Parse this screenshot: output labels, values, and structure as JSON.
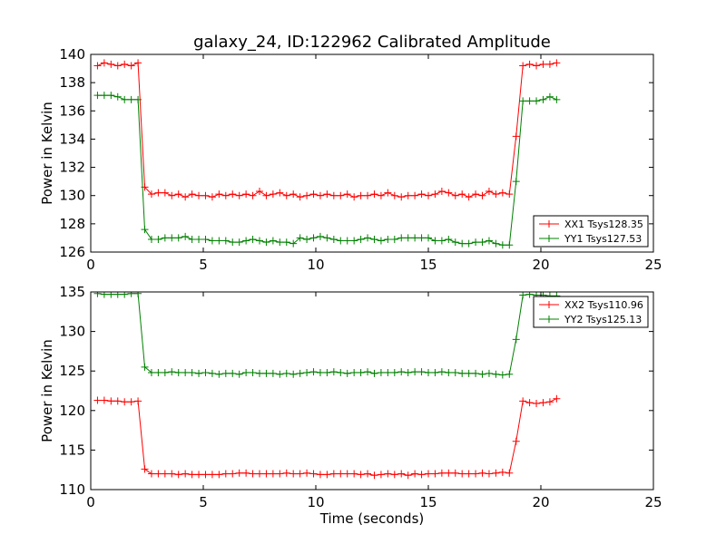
{
  "chart_data": [
    {
      "type": "line",
      "title": "galaxy_24, ID:122962 Calibrated Amplitude",
      "xlabel": "",
      "ylabel": "Power in Kelvin",
      "xlim": [
        0,
        25
      ],
      "ylim": [
        126,
        140
      ],
      "xticks": [
        "0",
        "5",
        "10",
        "15",
        "20",
        "25"
      ],
      "yticks": [
        "126",
        "128",
        "130",
        "132",
        "134",
        "136",
        "138",
        "140"
      ],
      "grid": false,
      "legend": "lower-right",
      "series": [
        {
          "name": "XX1 Tsys128.35",
          "color": "#ff0000",
          "x": [
            0.3,
            0.6,
            0.9,
            1.2,
            1.5,
            1.8,
            2.1,
            2.4,
            2.7,
            3.0,
            3.3,
            3.6,
            3.9,
            4.2,
            4.5,
            4.8,
            5.1,
            5.4,
            5.7,
            6.0,
            6.3,
            6.6,
            6.9,
            7.2,
            7.5,
            7.8,
            8.1,
            8.4,
            8.7,
            9.0,
            9.3,
            9.6,
            9.9,
            10.2,
            10.5,
            10.8,
            11.1,
            11.4,
            11.7,
            12.0,
            12.3,
            12.6,
            12.9,
            13.2,
            13.5,
            13.8,
            14.1,
            14.4,
            14.7,
            15.0,
            15.3,
            15.6,
            15.9,
            16.2,
            16.5,
            16.8,
            17.1,
            17.4,
            17.7,
            18.0,
            18.3,
            18.6,
            18.9,
            19.2,
            19.5,
            19.8,
            20.1,
            20.4,
            20.7
          ],
          "y": [
            139.2,
            139.4,
            139.3,
            139.2,
            139.3,
            139.2,
            139.4,
            130.6,
            130.1,
            130.2,
            130.2,
            130.0,
            130.1,
            129.9,
            130.1,
            130.0,
            130.0,
            129.9,
            130.1,
            130.0,
            130.1,
            130.0,
            130.1,
            130.0,
            130.3,
            130.0,
            130.1,
            130.2,
            130.0,
            130.1,
            129.9,
            130.0,
            130.1,
            130.0,
            130.1,
            130.0,
            130.0,
            130.1,
            129.9,
            130.0,
            130.0,
            130.1,
            130.0,
            130.2,
            130.0,
            129.9,
            130.0,
            130.0,
            130.1,
            130.0,
            130.1,
            130.3,
            130.2,
            130.0,
            130.1,
            129.9,
            130.1,
            130.0,
            130.3,
            130.1,
            130.2,
            130.1,
            134.2,
            139.2,
            139.3,
            139.2,
            139.3,
            139.3,
            139.4
          ]
        },
        {
          "name": "YY1 Tsys127.53",
          "color": "#008000",
          "x": [
            0.3,
            0.6,
            0.9,
            1.2,
            1.5,
            1.8,
            2.1,
            2.4,
            2.7,
            3.0,
            3.3,
            3.6,
            3.9,
            4.2,
            4.5,
            4.8,
            5.1,
            5.4,
            5.7,
            6.0,
            6.3,
            6.6,
            6.9,
            7.2,
            7.5,
            7.8,
            8.1,
            8.4,
            8.7,
            9.0,
            9.3,
            9.6,
            9.9,
            10.2,
            10.5,
            10.8,
            11.1,
            11.4,
            11.7,
            12.0,
            12.3,
            12.6,
            12.9,
            13.2,
            13.5,
            13.8,
            14.1,
            14.4,
            14.7,
            15.0,
            15.3,
            15.6,
            15.9,
            16.2,
            16.5,
            16.8,
            17.1,
            17.4,
            17.7,
            18.0,
            18.3,
            18.6,
            18.9,
            19.2,
            19.5,
            19.8,
            20.1,
            20.4,
            20.7
          ],
          "y": [
            137.1,
            137.1,
            137.1,
            137.0,
            136.8,
            136.8,
            136.8,
            127.6,
            126.9,
            126.9,
            127.0,
            127.0,
            127.0,
            127.1,
            126.9,
            126.9,
            126.9,
            126.8,
            126.8,
            126.8,
            126.7,
            126.7,
            126.8,
            126.9,
            126.8,
            126.7,
            126.8,
            126.7,
            126.7,
            126.6,
            127.0,
            126.9,
            127.0,
            127.1,
            127.0,
            126.9,
            126.8,
            126.8,
            126.8,
            126.9,
            127.0,
            126.9,
            126.8,
            126.9,
            126.9,
            127.0,
            127.0,
            127.0,
            127.0,
            127.0,
            126.8,
            126.8,
            126.9,
            126.7,
            126.6,
            126.6,
            126.7,
            126.7,
            126.8,
            126.6,
            126.5,
            126.5,
            131.0,
            136.7,
            136.7,
            136.7,
            136.8,
            137.0,
            136.8
          ]
        }
      ]
    },
    {
      "type": "line",
      "title": "",
      "xlabel": "Time (seconds)",
      "ylabel": "Power in Kelvin",
      "xlim": [
        0,
        25
      ],
      "ylim": [
        110,
        135
      ],
      "xticks": [
        "0",
        "5",
        "10",
        "15",
        "20",
        "25"
      ],
      "yticks": [
        "110",
        "115",
        "120",
        "125",
        "130",
        "135"
      ],
      "grid": false,
      "legend": "top-right",
      "series": [
        {
          "name": "XX2 Tsys110.96",
          "color": "#ff0000",
          "x": [
            0.3,
            0.6,
            0.9,
            1.2,
            1.5,
            1.8,
            2.1,
            2.4,
            2.7,
            3.0,
            3.3,
            3.6,
            3.9,
            4.2,
            4.5,
            4.8,
            5.1,
            5.4,
            5.7,
            6.0,
            6.3,
            6.6,
            6.9,
            7.2,
            7.5,
            7.8,
            8.1,
            8.4,
            8.7,
            9.0,
            9.3,
            9.6,
            9.9,
            10.2,
            10.5,
            10.8,
            11.1,
            11.4,
            11.7,
            12.0,
            12.3,
            12.6,
            12.9,
            13.2,
            13.5,
            13.8,
            14.1,
            14.4,
            14.7,
            15.0,
            15.3,
            15.6,
            15.9,
            16.2,
            16.5,
            16.8,
            17.1,
            17.4,
            17.7,
            18.0,
            18.3,
            18.6,
            18.9,
            19.2,
            19.5,
            19.8,
            20.1,
            20.4,
            20.7
          ],
          "y": [
            121.3,
            121.3,
            121.2,
            121.2,
            121.1,
            121.1,
            121.2,
            112.6,
            112.0,
            112.0,
            112.0,
            112.0,
            111.9,
            112.0,
            111.9,
            111.9,
            111.9,
            111.9,
            111.9,
            112.0,
            112.0,
            112.1,
            112.1,
            112.0,
            112.0,
            112.0,
            112.0,
            112.0,
            112.1,
            112.0,
            112.0,
            112.1,
            112.0,
            111.9,
            111.9,
            112.0,
            112.0,
            112.0,
            112.0,
            111.9,
            112.0,
            111.8,
            111.9,
            112.0,
            111.9,
            112.0,
            111.8,
            112.0,
            111.9,
            112.0,
            112.0,
            112.1,
            112.1,
            112.1,
            112.0,
            112.0,
            112.0,
            112.1,
            112.0,
            112.1,
            112.2,
            112.1,
            116.1,
            121.2,
            121.0,
            120.9,
            121.0,
            121.1,
            121.5
          ]
        },
        {
          "name": "YY2 Tsys125.13",
          "color": "#008000",
          "x": [
            0.3,
            0.6,
            0.9,
            1.2,
            1.5,
            1.8,
            2.1,
            2.4,
            2.7,
            3.0,
            3.3,
            3.6,
            3.9,
            4.2,
            4.5,
            4.8,
            5.1,
            5.4,
            5.7,
            6.0,
            6.3,
            6.6,
            6.9,
            7.2,
            7.5,
            7.8,
            8.1,
            8.4,
            8.7,
            9.0,
            9.3,
            9.6,
            9.9,
            10.2,
            10.5,
            10.8,
            11.1,
            11.4,
            11.7,
            12.0,
            12.3,
            12.6,
            12.9,
            13.2,
            13.5,
            13.8,
            14.1,
            14.4,
            14.7,
            15.0,
            15.3,
            15.6,
            15.9,
            16.2,
            16.5,
            16.8,
            17.1,
            17.4,
            17.7,
            18.0,
            18.3,
            18.6,
            18.9,
            19.2,
            19.5,
            19.8,
            20.1,
            20.4,
            20.7
          ],
          "y": [
            134.8,
            134.7,
            134.7,
            134.7,
            134.7,
            134.8,
            134.8,
            125.5,
            124.8,
            124.8,
            124.8,
            124.9,
            124.8,
            124.8,
            124.8,
            124.7,
            124.8,
            124.7,
            124.6,
            124.7,
            124.7,
            124.6,
            124.8,
            124.8,
            124.7,
            124.7,
            124.7,
            124.6,
            124.7,
            124.6,
            124.7,
            124.8,
            124.9,
            124.8,
            124.8,
            124.9,
            124.8,
            124.7,
            124.8,
            124.8,
            124.9,
            124.7,
            124.8,
            124.8,
            124.8,
            124.9,
            124.8,
            124.9,
            124.9,
            124.8,
            124.8,
            124.9,
            124.8,
            124.8,
            124.7,
            124.7,
            124.7,
            124.6,
            124.7,
            124.6,
            124.5,
            124.6,
            129.0,
            134.6,
            134.7,
            134.6,
            134.6,
            134.5,
            134.5
          ]
        }
      ]
    }
  ]
}
